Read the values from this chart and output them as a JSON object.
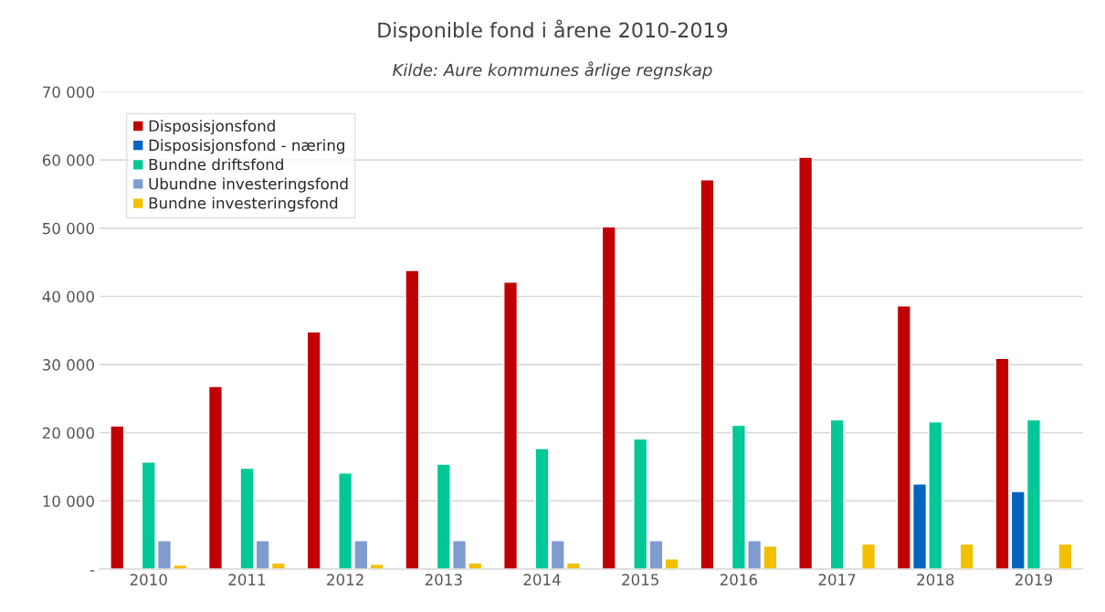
{
  "chart_data": {
    "type": "bar",
    "title": "Disponible fond i årene 2010-2019",
    "subtitle": "Kilde: Aure kommunes årlige regnskap",
    "categories": [
      "2010",
      "2011",
      "2012",
      "2013",
      "2014",
      "2015",
      "2016",
      "2017",
      "2018",
      "2019"
    ],
    "series": [
      {
        "name": "Disposisjonsfond",
        "color": "#c00000",
        "values": [
          21000,
          26800,
          34800,
          43800,
          42100,
          50200,
          57100,
          60400,
          38600,
          30900
        ]
      },
      {
        "name": "Disposisjonsfond - næring",
        "color": "#0563c1",
        "values": [
          null,
          null,
          null,
          null,
          null,
          null,
          null,
          null,
          12500,
          11400
        ]
      },
      {
        "name": "Bundne driftsfond",
        "color": "#00c896",
        "values": [
          15700,
          14800,
          14100,
          15400,
          17700,
          19100,
          21100,
          21900,
          21600,
          21900
        ]
      },
      {
        "name": "Ubundne investeringsfond",
        "color": "#7f9bcf",
        "values": [
          4200,
          4200,
          4200,
          4200,
          4200,
          4200,
          4200,
          null,
          null,
          null
        ]
      },
      {
        "name": "Bundne investeringsfond",
        "color": "#f2c000",
        "values": [
          600,
          900,
          700,
          900,
          900,
          1500,
          3400,
          3700,
          3700,
          3700
        ]
      }
    ],
    "ylim": [
      0,
      70000
    ],
    "yticks": [
      {
        "value": 0,
        "label": "-"
      },
      {
        "value": 10000,
        "label": "10 000"
      },
      {
        "value": 20000,
        "label": "20 000"
      },
      {
        "value": 30000,
        "label": "30 000"
      },
      {
        "value": 40000,
        "label": "40 000"
      },
      {
        "value": 50000,
        "label": "50 000"
      },
      {
        "value": 60000,
        "label": "60 000"
      },
      {
        "value": 70000,
        "label": "70 000"
      }
    ],
    "grid": "y",
    "legend": "top left"
  }
}
